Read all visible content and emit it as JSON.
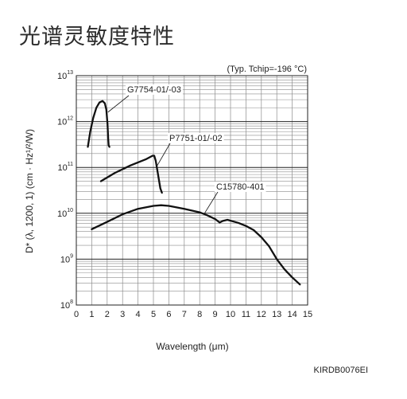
{
  "page": {
    "title": "光谱灵敏度特性",
    "doc_id": "KIRDB0076EI"
  },
  "chart_data": {
    "type": "line",
    "xlabel": "Wavelength (μm)",
    "ylabel": "D* (λ, 1200, 1) (cm · Hz¹/²/W)",
    "condition_note": "(Typ. Tchip=-196 °C)",
    "x_scale": "linear",
    "y_scale": "log",
    "xlim": [
      0,
      15
    ],
    "ylim": [
      100000000,
      10000000000000
    ],
    "x_ticks": [
      0,
      1,
      2,
      3,
      4,
      5,
      6,
      7,
      8,
      9,
      10,
      11,
      12,
      13,
      14,
      15
    ],
    "y_ticks": [
      {
        "value": 100000000,
        "mantissa": "10",
        "exponent": "8"
      },
      {
        "value": 1000000000,
        "mantissa": "10",
        "exponent": "9"
      },
      {
        "value": 10000000000,
        "mantissa": "10",
        "exponent": "10"
      },
      {
        "value": 100000000000,
        "mantissa": "10",
        "exponent": "11"
      },
      {
        "value": 1000000000000,
        "mantissa": "10",
        "exponent": "12"
      },
      {
        "value": 10000000000000,
        "mantissa": "10",
        "exponent": "13"
      }
    ],
    "grid": true,
    "series": [
      {
        "name": "G7754-01/-03",
        "x": [
          0.75,
          0.9,
          1.1,
          1.3,
          1.5,
          1.7,
          1.85,
          1.95,
          2.02,
          2.07,
          2.1,
          2.15
        ],
        "y": [
          280000000000.0,
          600000000000.0,
          1200000000000.0,
          2000000000000.0,
          2600000000000.0,
          2800000000000.0,
          2500000000000.0,
          1800000000000.0,
          900000000000.0,
          400000000000.0,
          300000000000.0,
          280000000000.0
        ]
      },
      {
        "name": "P7751-01/-02",
        "x": [
          1.6,
          2.5,
          3.5,
          4.5,
          4.95,
          5.05,
          5.15,
          5.3,
          5.45,
          5.55
        ],
        "y": [
          50000000000.0,
          76000000000.0,
          110000000000.0,
          150000000000.0,
          180000000000.0,
          180000000000.0,
          140000000000.0,
          70000000000.0,
          35000000000.0,
          28000000000.0
        ]
      },
      {
        "name": "C15780-401",
        "x": [
          1.0,
          2.0,
          3.0,
          4.0,
          5.0,
          5.5,
          6.0,
          7.0,
          8.0,
          8.5,
          9.0,
          9.3,
          9.5,
          9.8,
          10.5,
          11.0,
          11.5,
          12.0,
          12.5,
          13.0,
          13.5,
          14.0,
          14.5
        ],
        "y": [
          4500000000.0,
          6500000000.0,
          9500000000.0,
          12500000000.0,
          14500000000.0,
          15000000000.0,
          14500000000.0,
          12500000000.0,
          10500000000.0,
          9000000000.0,
          7500000000.0,
          6300000000.0,
          6800000000.0,
          7200000000.0,
          6200000000.0,
          5300000000.0,
          4300000000.0,
          3000000000.0,
          1900000000.0,
          1000000000.0,
          600000000.0,
          400000000.0,
          280000000.0
        ]
      }
    ]
  }
}
